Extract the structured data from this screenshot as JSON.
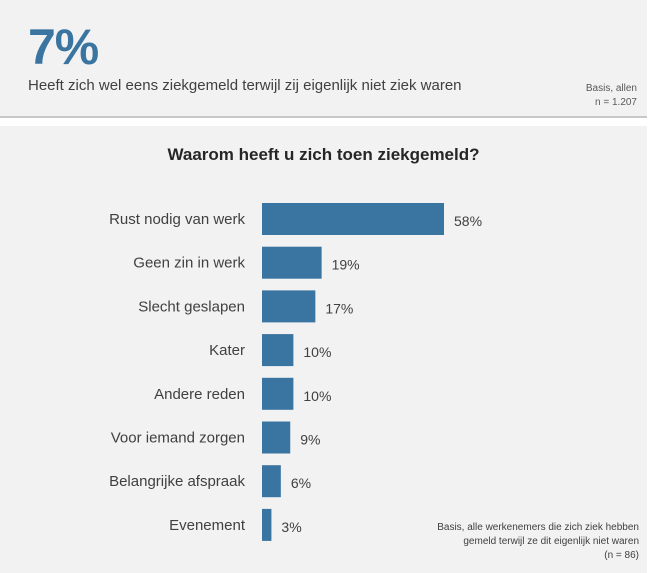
{
  "header": {
    "stat": "7%",
    "headline": "Heeft zich wel eens ziekgemeld terwijl zij eigenlijk niet ziek waren",
    "basis_line1": "Basis, allen",
    "basis_line2": "n = 1.207"
  },
  "chart": {
    "footnote_line1": "Basis, alle werkenemers die zich ziek hebben",
    "footnote_line2": "gemeld terwijl ze dit eigenlijk niet waren",
    "footnote_line3": "(n = 86)"
  },
  "colors": {
    "bar": "#3a74a0",
    "background": "#f2f2f2",
    "stat": "#3a74a0"
  },
  "chart_data": {
    "type": "bar",
    "orientation": "horizontal",
    "title": "Waarom heeft u zich toen ziekgemeld?",
    "categories": [
      "Rust nodig van werk",
      "Geen zin in werk",
      "Slecht geslapen",
      "Kater",
      "Andere reden",
      "Voor iemand zorgen",
      "Belangrijke afspraak",
      "Evenement"
    ],
    "values": [
      58,
      19,
      17,
      10,
      10,
      9,
      6,
      3
    ],
    "value_labels": [
      "58%",
      "19%",
      "17%",
      "10%",
      "10%",
      "9%",
      "6%",
      "3%"
    ],
    "xlim": [
      0,
      58
    ],
    "grid": false,
    "legend": "none"
  }
}
